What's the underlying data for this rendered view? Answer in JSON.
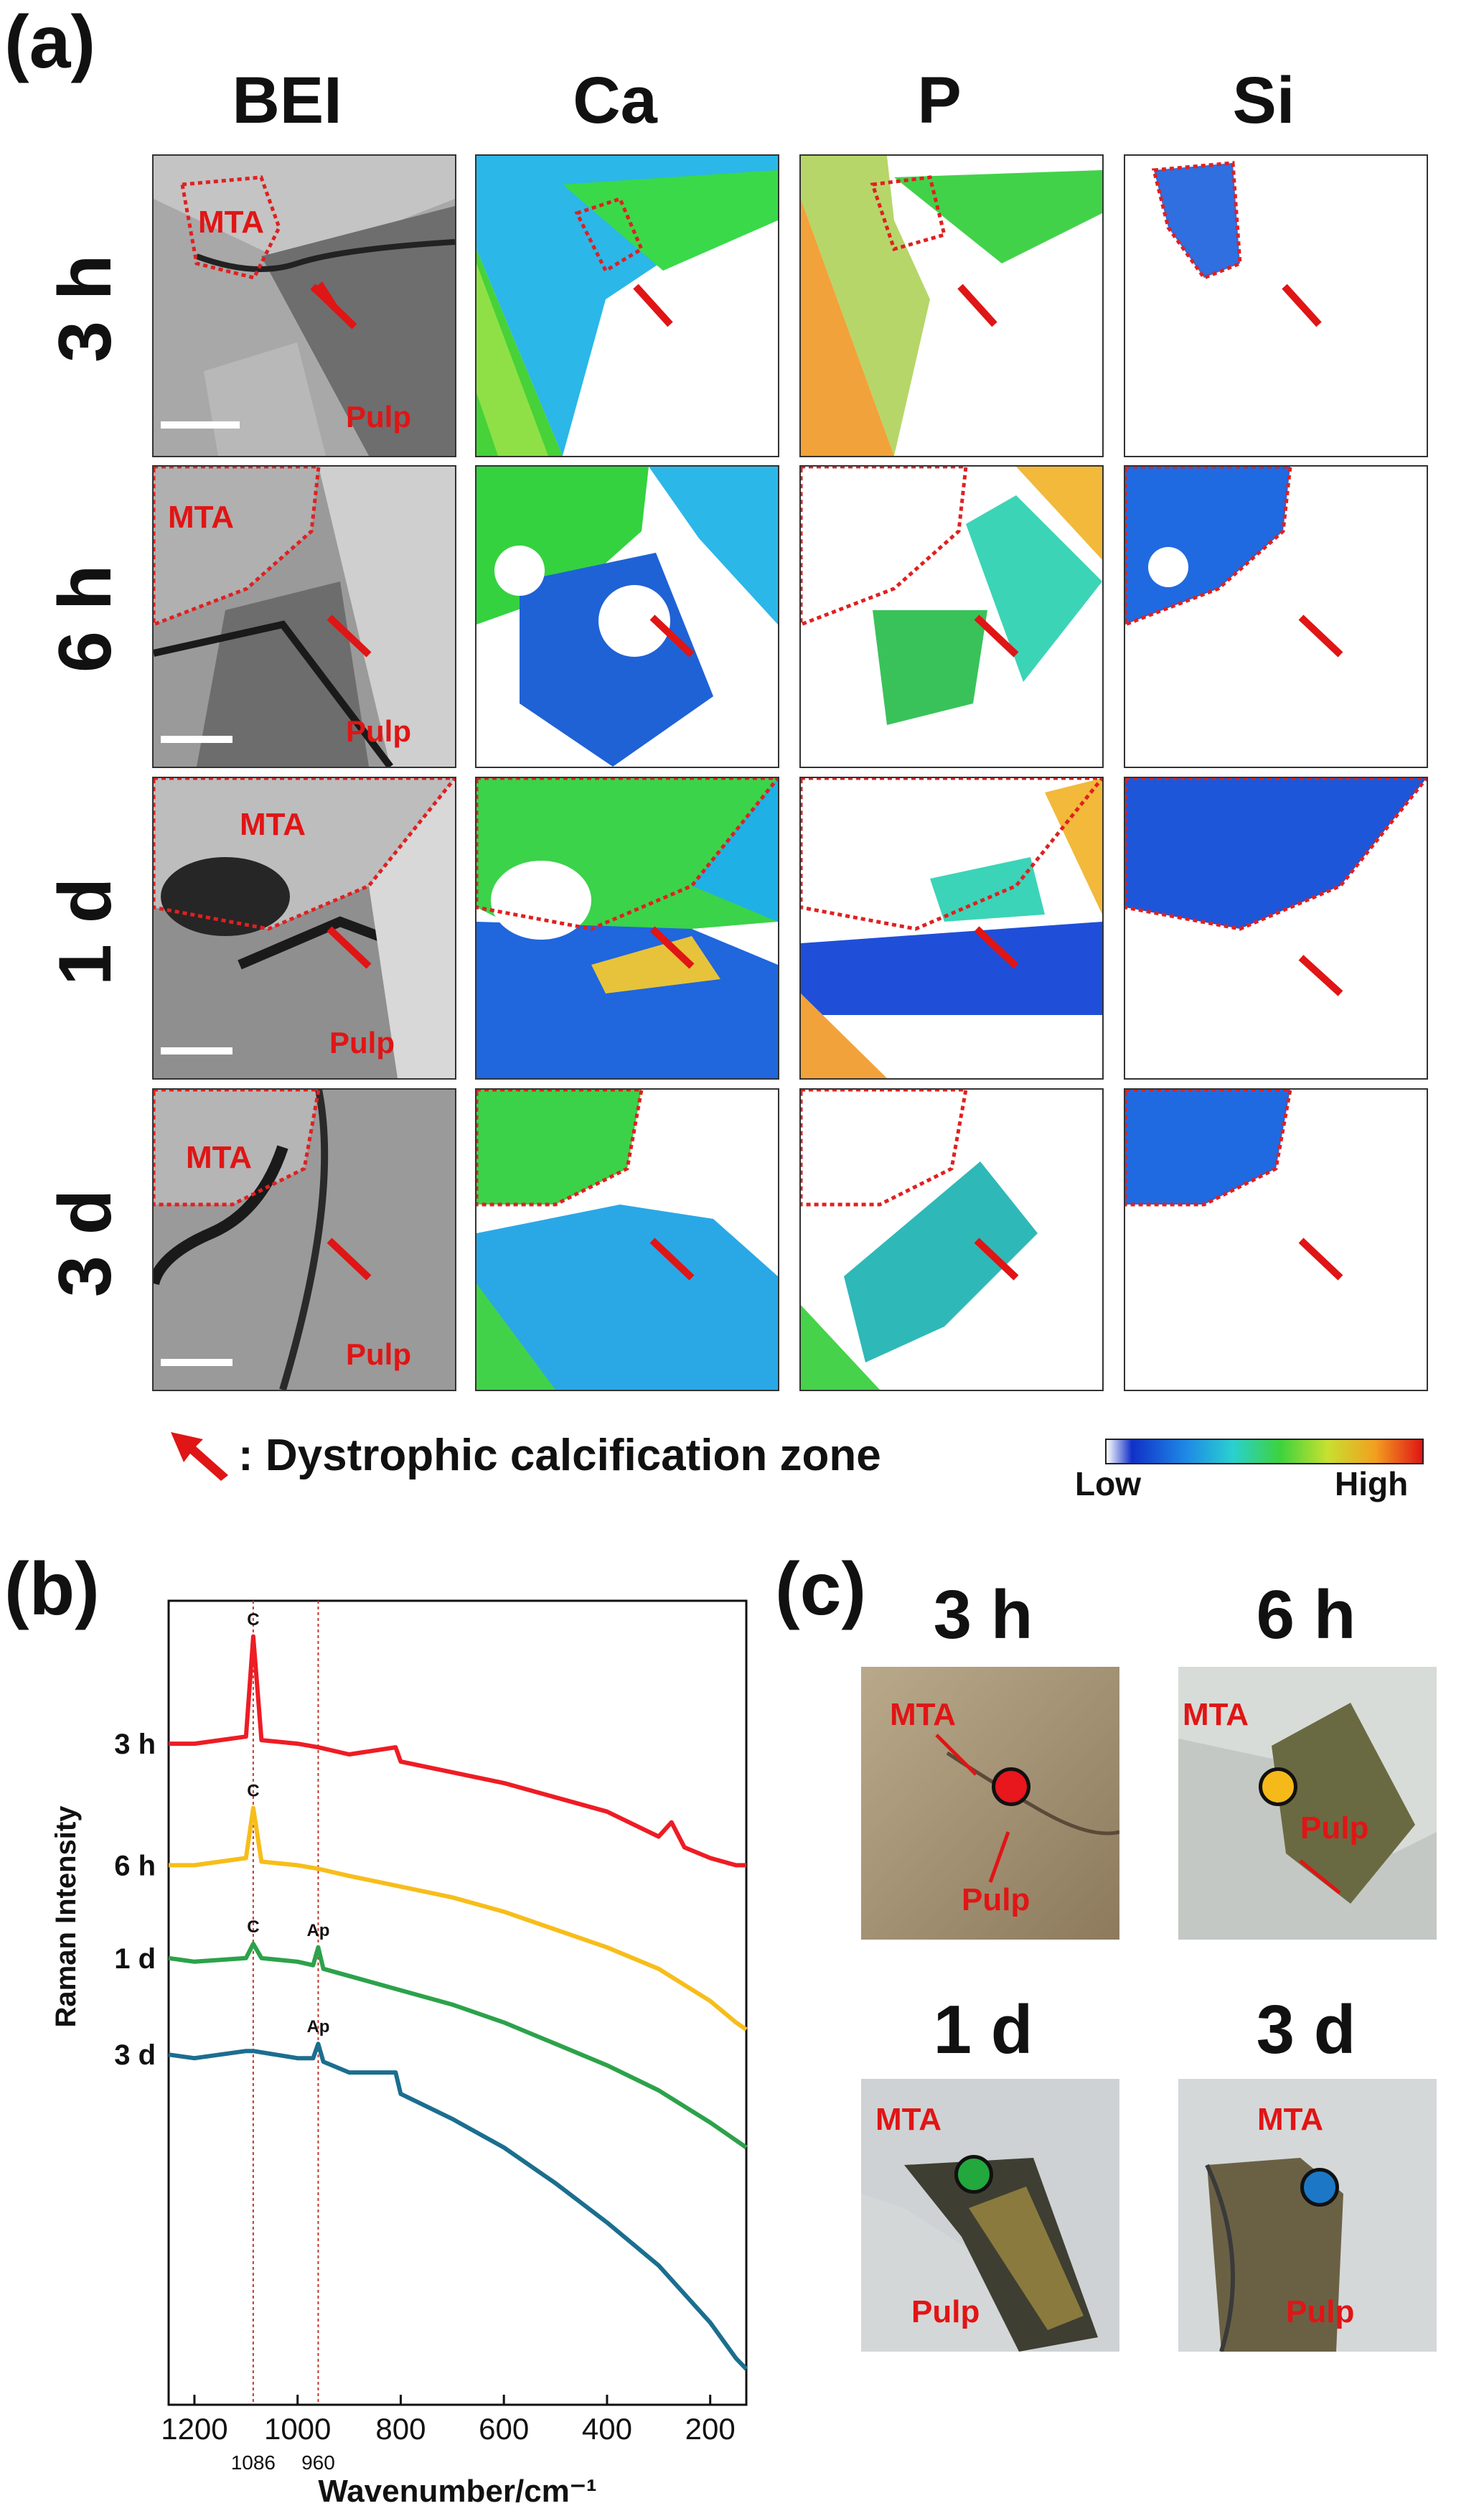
{
  "panel_a": {
    "label": "(a)",
    "columns": [
      "BEI",
      "Ca",
      "P",
      "Si"
    ],
    "rows": [
      "3 h",
      "6 h",
      "1 d",
      "3 d"
    ],
    "tile_mta_label": "MTA",
    "tile_pulp_label": "Pulp",
    "legend_text": ": Dystrophic calcification zone",
    "colorbar_low": "Low",
    "colorbar_high": "High"
  },
  "panel_b": {
    "label": "(b)"
  },
  "panel_c": {
    "label": "(c)",
    "photos": [
      {
        "title": "3 h",
        "mta": "MTA",
        "pulp": "Pulp",
        "dot_color": "#e8161d"
      },
      {
        "title": "6 h",
        "mta": "MTA",
        "pulp": "Pulp",
        "dot_color": "#f6b91a"
      },
      {
        "title": "1 d",
        "mta": "MTA",
        "pulp": "Pulp",
        "dot_color": "#22a83d"
      },
      {
        "title": "3 d",
        "mta": "MTA",
        "pulp": "Pulp",
        "dot_color": "#1c78c6"
      }
    ]
  },
  "chart_data": {
    "type": "line",
    "xlabel": "Wavenumber/cm⁻¹",
    "ylabel": "Raman Intensity",
    "xlim": [
      1250,
      130
    ],
    "xticks": [
      1200,
      1000,
      800,
      600,
      400,
      200
    ],
    "xtick_labels": [
      "1200",
      "1000",
      "800",
      "600",
      "400",
      "200"
    ],
    "reference_lines": [
      {
        "x": 1086,
        "label": "1086"
      },
      {
        "x": 960,
        "label": "960"
      }
    ],
    "series": [
      {
        "name": "3 h",
        "color": "#ee1c24",
        "offset": 0.0,
        "x": [
          1250,
          1200,
          1100,
          1086,
          1070,
          1000,
          960,
          900,
          810,
          800,
          700,
          600,
          500,
          400,
          300,
          275,
          250,
          200,
          150,
          130
        ],
        "y": [
          2.0,
          2.0,
          2.2,
          5.0,
          2.1,
          2.0,
          1.9,
          1.7,
          1.9,
          1.5,
          1.2,
          0.9,
          0.5,
          0.1,
          -0.6,
          -0.2,
          -0.9,
          -1.2,
          -1.4,
          -1.4
        ],
        "peaks": [
          {
            "x": 1086,
            "label": "C"
          }
        ]
      },
      {
        "name": "6 h",
        "color": "#f7bd1a",
        "offset": 0.0,
        "x": [
          1250,
          1200,
          1100,
          1086,
          1070,
          1000,
          960,
          900,
          800,
          700,
          600,
          500,
          400,
          300,
          200,
          150,
          130
        ],
        "y": [
          -1.4,
          -1.4,
          -1.2,
          0.2,
          -1.3,
          -1.4,
          -1.5,
          -1.7,
          -2.0,
          -2.3,
          -2.7,
          -3.2,
          -3.7,
          -4.3,
          -5.2,
          -5.8,
          -6.0
        ],
        "peaks": [
          {
            "x": 1086,
            "label": "C"
          }
        ]
      },
      {
        "name": "1 d",
        "color": "#2ca24a",
        "offset": 0.0,
        "x": [
          1250,
          1200,
          1100,
          1086,
          1070,
          1000,
          970,
          960,
          950,
          900,
          800,
          700,
          600,
          500,
          400,
          300,
          200,
          150,
          130
        ],
        "y": [
          -4.0,
          -4.1,
          -4.0,
          -3.6,
          -4.0,
          -4.1,
          -4.2,
          -3.7,
          -4.3,
          -4.5,
          -4.9,
          -5.3,
          -5.8,
          -6.4,
          -7.0,
          -7.7,
          -8.6,
          -9.1,
          -9.3
        ],
        "peaks": [
          {
            "x": 1086,
            "label": "C"
          },
          {
            "x": 960,
            "label": "Ap"
          }
        ]
      },
      {
        "name": "3 d",
        "color": "#1b6e8f",
        "offset": 0.0,
        "x": [
          1250,
          1200,
          1100,
          1086,
          1000,
          970,
          960,
          950,
          900,
          810,
          800,
          700,
          600,
          500,
          400,
          300,
          200,
          150,
          130
        ],
        "y": [
          -6.7,
          -6.8,
          -6.6,
          -6.6,
          -6.8,
          -6.8,
          -6.4,
          -6.9,
          -7.2,
          -7.2,
          -7.8,
          -8.5,
          -9.3,
          -10.3,
          -11.4,
          -12.6,
          -14.2,
          -15.2,
          -15.5
        ],
        "peaks": [
          {
            "x": 960,
            "label": "Ap"
          }
        ]
      }
    ]
  }
}
